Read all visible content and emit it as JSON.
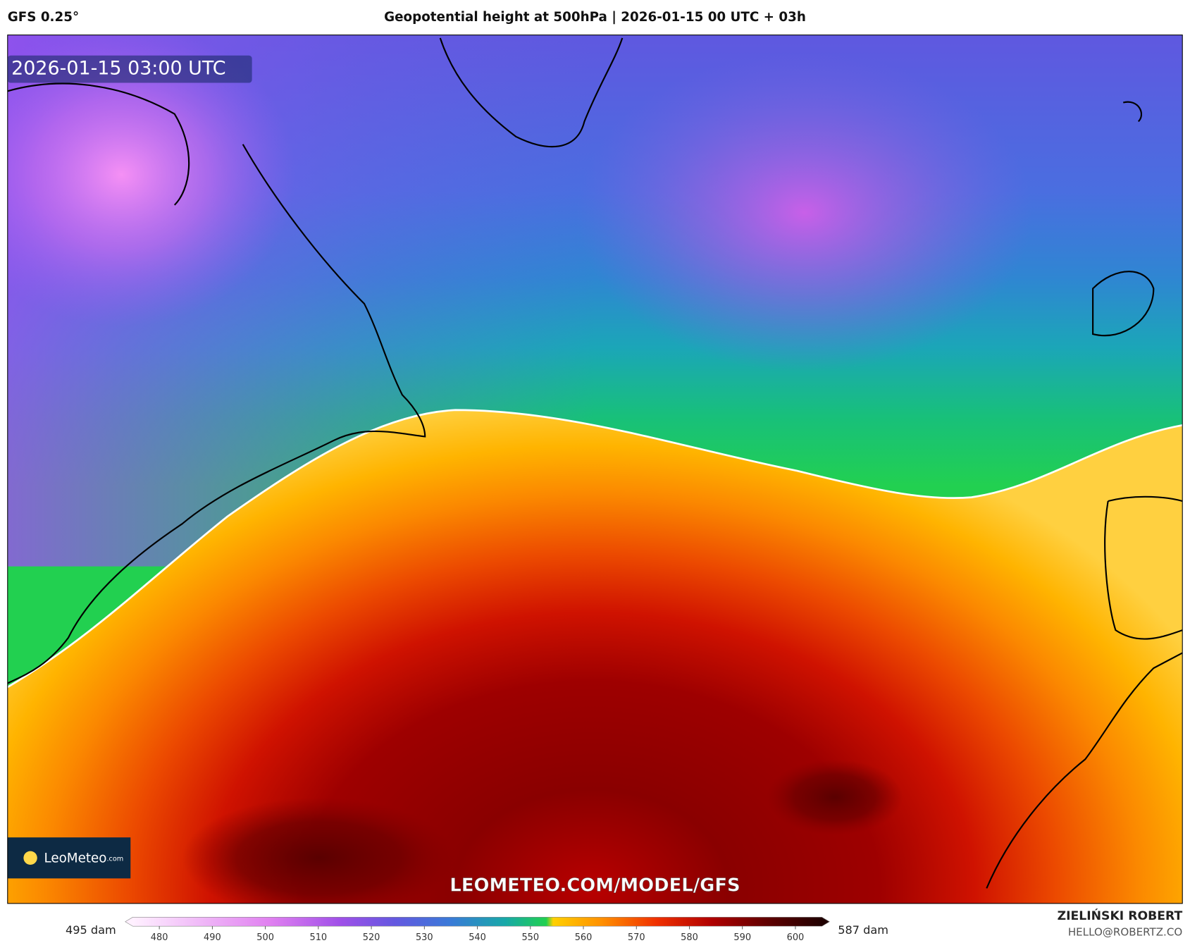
{
  "header": {
    "model": "GFS 0.25°",
    "title": "Geopotential height at 500hPa | 2026-01-15 00 UTC + 03h"
  },
  "map": {
    "timestamp": "2026-01-15 03:00 UTC",
    "watermark": "LEOMETEO.COM/MODEL/GFS",
    "logo": {
      "name": "LeoMeteo",
      "suffix": ".com"
    }
  },
  "colorbar": {
    "min_label": "495 dam",
    "max_label": "587 dam",
    "range": [
      475,
      605
    ],
    "ticks": [
      480,
      490,
      500,
      510,
      520,
      530,
      540,
      550,
      560,
      570,
      580,
      590,
      600
    ]
  },
  "footer": {
    "author": "ZIELIŃSKI ROBERT",
    "email": "HELLO@ROBERTZ.CO"
  }
}
